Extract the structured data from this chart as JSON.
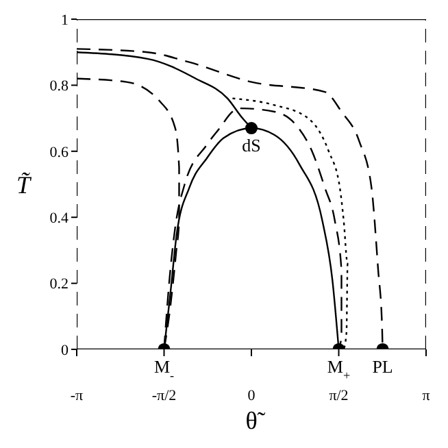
{
  "chart_data": {
    "type": "line",
    "xlabel": "θ̃",
    "ylabel": "T̃",
    "xlim": [
      -3.1416,
      3.1416
    ],
    "ylim": [
      0,
      1
    ],
    "xticks": [
      {
        "value": -3.1416,
        "label": "-π"
      },
      {
        "value": -1.5708,
        "label": "-π/2"
      },
      0,
      {
        "value": 1.5708,
        "label": "π/2"
      },
      {
        "value": 3.1416,
        "label": "π"
      }
    ],
    "yticks": [
      0,
      0.2,
      0.4,
      0.6,
      0.8,
      1
    ],
    "series": [
      {
        "color": "#000000",
        "line_style": "solid",
        "x": [
          3.1416,
          -3.1416
        ],
        "values": [
          1,
          1
        ]
      },
      {
        "color": "#000000",
        "line_style": "solid",
        "x": [
          -3.1416,
          3.1416
        ],
        "values": [
          0,
          0
        ]
      },
      {
        "color": "#000000",
        "line_style": "dashed",
        "x": [
          -3.1416,
          -3.1416
        ],
        "values": [
          0,
          1
        ]
      },
      {
        "color": "#000000",
        "line_style": "dashed",
        "x": [
          3.1416,
          3.1416
        ],
        "values": [
          0,
          1
        ]
      },
      {
        "color": "#000000",
        "line_style": "solid",
        "x": [
          -1.571,
          -1.457,
          -1.343,
          -1.116,
          -0.797,
          -0.501,
          0,
          0.41,
          0.865,
          1.275,
          1.457,
          1.571
        ],
        "values": [
          0,
          0.17,
          0.35,
          0.49,
          0.58,
          0.64,
          0.67,
          0.65,
          0.56,
          0.39,
          0.21,
          0
        ]
      },
      {
        "color": "#000000",
        "line_style": "solid",
        "x": [
          -3.1416,
          -1.87,
          -1.0,
          -0.43,
          -0.16,
          0
        ],
        "values": [
          0.9,
          0.88,
          0.82,
          0.76,
          0.7,
          0.67
        ]
      },
      {
        "color": "#000000",
        "line_style": "dashed",
        "x": [
          -3.1416,
          -1.87,
          -1.12,
          0,
          1.32,
          1.62,
          1.94,
          2.16,
          2.28,
          2.35,
          2.36
        ],
        "values": [
          0.91,
          0.9,
          0.87,
          0.81,
          0.78,
          0.72,
          0.63,
          0.49,
          0.24,
          0.07,
          0
        ]
      },
      {
        "color": "#000000",
        "line_style": "dashed",
        "x": [
          -3.1416,
          -2.25,
          -1.64,
          -1.37,
          -1.3,
          -1.3,
          -1.35,
          -1.48,
          -1.571
        ],
        "values": [
          0.82,
          0.81,
          0.75,
          0.67,
          0.55,
          0.39,
          0.3,
          0.1,
          0
        ]
      },
      {
        "color": "#000000",
        "line_style": "dashed",
        "x": [
          -1.571,
          -1.48,
          -1.37,
          -1.2,
          -0.8,
          -0.57,
          -0.34,
          -0.2,
          0.41,
          0.8,
          1.09,
          1.32,
          1.5,
          1.62,
          1.62,
          1.571
        ],
        "values": [
          0,
          0.2,
          0.37,
          0.5,
          0.62,
          0.67,
          0.72,
          0.73,
          0.72,
          0.68,
          0.6,
          0.49,
          0.39,
          0.24,
          0.04,
          0
        ]
      },
      {
        "color": "#000000",
        "line_style": "dotted",
        "x": [
          -0.34,
          0.41,
          1.02,
          1.39,
          1.59,
          1.66,
          1.73,
          1.71,
          1.66
        ],
        "values": [
          0.76,
          0.74,
          0.7,
          0.6,
          0.49,
          0.39,
          0.26,
          0.05,
          0
        ]
      },
      {
        "type": "scatter",
        "color": "#000000",
        "marker": "circle",
        "x": [
          -1.571,
          0,
          1.571,
          2.36
        ],
        "values": [
          0,
          0.67,
          0,
          0
        ]
      }
    ],
    "annotations": [
      {
        "text": "M$_{-}$",
        "x": -1.571,
        "y": 0
      },
      {
        "text": "dS",
        "x": 0,
        "y": 0.67
      },
      {
        "text": "M$_{+}$",
        "x": 1.571,
        "y": 0
      },
      {
        "text": "PL",
        "x": 2.36,
        "y": 0
      }
    ]
  }
}
